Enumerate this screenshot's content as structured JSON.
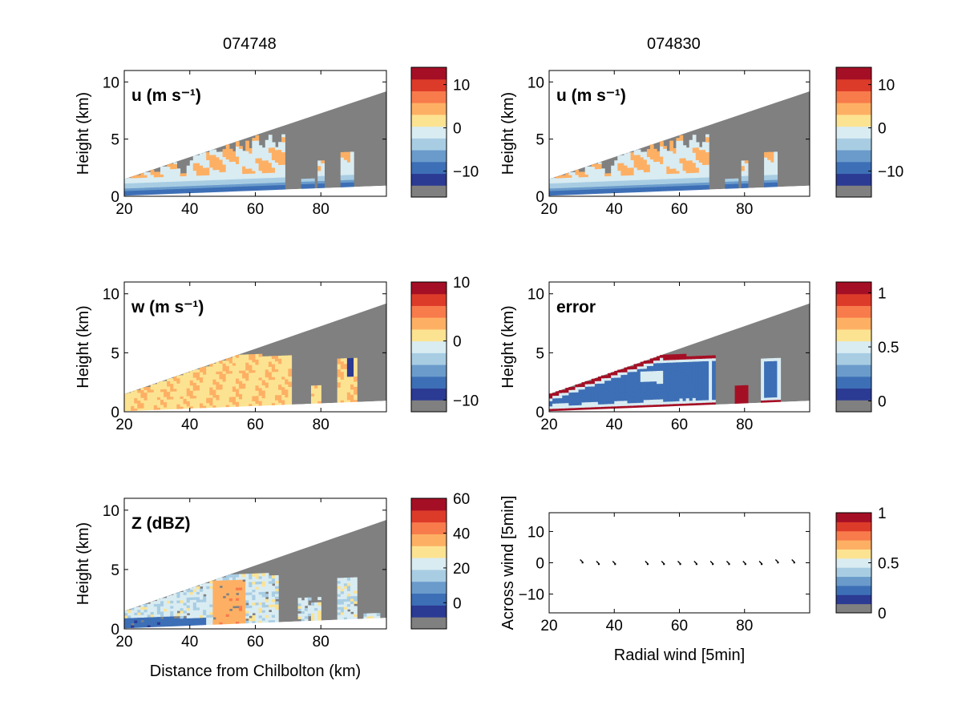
{
  "titles": {
    "left": "074748",
    "right": "074830"
  },
  "colormap": [
    "#2b3a93",
    "#3d6fb6",
    "#6a9bcb",
    "#a8cde3",
    "#d9ecf2",
    "#fce392",
    "#fdb064",
    "#f87b4c",
    "#dd3b2a",
    "#a50f25"
  ],
  "gray": "#808080",
  "chart_data": [
    {
      "id": "u-left",
      "type": "heatmap",
      "label": "u (m s⁻¹)",
      "xlabel": "",
      "ylabel": "Height (km)",
      "xlim": [
        20,
        100
      ],
      "ylim": [
        0,
        11
      ],
      "xticks": [
        20,
        40,
        60,
        80
      ],
      "yticks": [
        0,
        5,
        10
      ],
      "cbar": {
        "ticks": [
          10,
          0,
          -10
        ],
        "range": [
          -16,
          14
        ]
      }
    },
    {
      "id": "u-right",
      "type": "heatmap",
      "label": "u (m s⁻¹)",
      "xlabel": "",
      "ylabel": "Height (km)",
      "xlim": [
        20,
        100
      ],
      "ylim": [
        0,
        11
      ],
      "xticks": [
        20,
        40,
        60,
        80
      ],
      "yticks": [
        0,
        5,
        10
      ],
      "cbar": {
        "ticks": [
          10,
          0,
          -10
        ],
        "range": [
          -16,
          14
        ]
      }
    },
    {
      "id": "w-left",
      "type": "heatmap",
      "label": "w (m s⁻¹)",
      "xlabel": "",
      "ylabel": "Height (km)",
      "xlim": [
        20,
        100
      ],
      "ylim": [
        0,
        11
      ],
      "xticks": [
        20,
        40,
        60,
        80
      ],
      "yticks": [
        0,
        5,
        10
      ],
      "cbar": {
        "ticks": [
          10,
          0,
          -10
        ],
        "range": [
          -12,
          10
        ]
      }
    },
    {
      "id": "error-right",
      "type": "heatmap",
      "label": "error",
      "xlabel": "",
      "ylabel": "Height (km)",
      "xlim": [
        20,
        100
      ],
      "ylim": [
        0,
        11
      ],
      "xticks": [
        20,
        40,
        60,
        80
      ],
      "yticks": [
        0,
        5,
        10
      ],
      "cbar": {
        "ticks": [
          1,
          0.5,
          0
        ],
        "range": [
          -0.1,
          1.1
        ]
      }
    },
    {
      "id": "z-left",
      "type": "heatmap",
      "label": "Z (dBZ)",
      "xlabel": "Distance from Chilbolton (km)",
      "ylabel": "Height (km)",
      "xlim": [
        20,
        100
      ],
      "ylim": [
        0,
        11
      ],
      "xticks": [
        20,
        40,
        60,
        80
      ],
      "yticks": [
        0,
        5,
        10
      ],
      "cbar": {
        "ticks": [
          60,
          40,
          20,
          0
        ],
        "range": [
          -15,
          60
        ]
      }
    },
    {
      "id": "wind-right",
      "type": "scatter",
      "label": "",
      "xlabel": "Radial wind [5min]",
      "ylabel": "Across wind [5min]",
      "xlim": [
        20,
        100
      ],
      "ylim": [
        -16,
        16
      ],
      "xticks": [
        20,
        40,
        60,
        80
      ],
      "yticks": [
        10,
        0,
        -10
      ],
      "x": [
        30,
        35,
        40,
        50,
        55,
        60,
        65,
        70,
        75,
        80,
        85,
        90,
        95
      ],
      "y": [
        0.5,
        0,
        0,
        0,
        0,
        0,
        0,
        0,
        0,
        0,
        0,
        0.5,
        0.5
      ],
      "cbar": {
        "ticks": [
          1,
          0.5,
          0
        ],
        "range": [
          0,
          1
        ]
      }
    }
  ]
}
